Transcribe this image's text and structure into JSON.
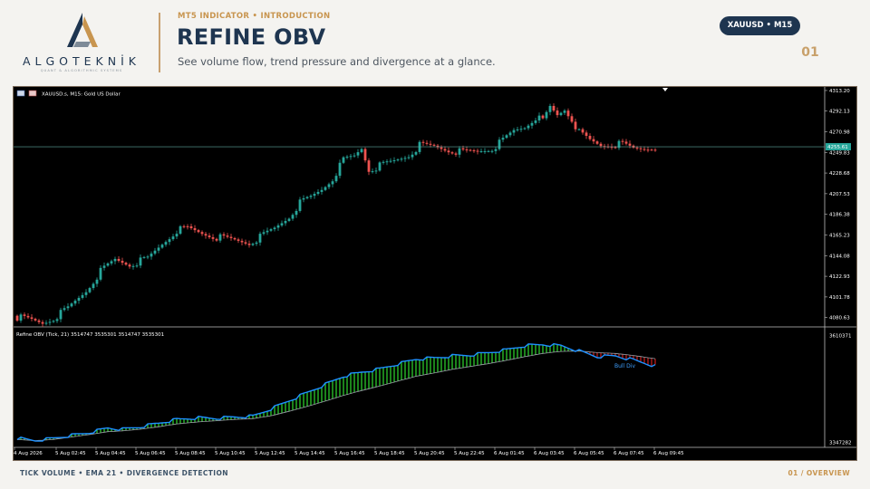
{
  "brand": {
    "name": "ALGOTEKNİK",
    "tagline": "QUANT & ALGORITHMIC SYSTEMS",
    "colors": {
      "navy": "#1e3550",
      "gold": "#c8954f"
    }
  },
  "header": {
    "eyebrow": "MT5 INDICATOR • INTRODUCTION",
    "title": "REFINE OBV",
    "subtitle": "See volume flow, trend pressure and divergence at a glance.",
    "badge": "XAUUSD • M15",
    "page_number": "01"
  },
  "footer": {
    "left": "TICK VOLUME • EMA 21 • DIVERGENCE DETECTION",
    "right": "01 / OVERVIEW"
  },
  "chart_data": [
    {
      "type": "candlestick",
      "title": "XAUUSD.s, M15:  Gold US Dollar",
      "y_ticks": [
        "4313.20",
        "4292.13",
        "4270.98",
        "4249.83",
        "4228.68",
        "4207.53",
        "4186.38",
        "4165.23",
        "4144.08",
        "4122.93",
        "4101.78",
        "4080.63"
      ],
      "ylim": [
        4072,
        4315
      ],
      "current_price": "4255.61",
      "current_price_value": 4255.6,
      "x_labels": [
        "4 Aug 2026",
        "5 Aug 02:45",
        "5 Aug 04:45",
        "5 Aug 06:45",
        "5 Aug 08:45",
        "5 Aug 10:45",
        "5 Aug 12:45",
        "5 Aug 14:45",
        "5 Aug 16:45",
        "5 Aug 18:45",
        "5 Aug 20:45",
        "5 Aug 22:45",
        "6 Aug 01:45",
        "6 Aug 03:45",
        "6 Aug 05:45",
        "6 Aug 07:45",
        "6 Aug 09:45"
      ],
      "close_anchors": [
        [
          0,
          4081
        ],
        [
          4,
          4078
        ],
        [
          7,
          4075
        ],
        [
          10,
          4080
        ],
        [
          14,
          4090
        ],
        [
          19,
          4108
        ],
        [
          23,
          4128
        ],
        [
          27,
          4140
        ],
        [
          31,
          4135
        ],
        [
          36,
          4141
        ],
        [
          40,
          4156
        ],
        [
          44,
          4170
        ],
        [
          47,
          4172
        ],
        [
          51,
          4167
        ],
        [
          55,
          4163
        ],
        [
          60,
          4160
        ],
        [
          64,
          4157
        ],
        [
          67,
          4163
        ],
        [
          71,
          4172
        ],
        [
          75,
          4184
        ],
        [
          78,
          4198
        ],
        [
          81,
          4204
        ],
        [
          84,
          4212
        ],
        [
          87,
          4223
        ],
        [
          90,
          4242
        ],
        [
          93,
          4246
        ],
        [
          95,
          4254
        ],
        [
          97,
          4232
        ],
        [
          100,
          4236
        ],
        [
          104,
          4241
        ],
        [
          108,
          4247
        ],
        [
          111,
          4257
        ],
        [
          115,
          4256
        ],
        [
          119,
          4252
        ],
        [
          123,
          4250
        ],
        [
          127,
          4251
        ],
        [
          131,
          4254
        ],
        [
          134,
          4262
        ],
        [
          137,
          4272
        ],
        [
          140,
          4276
        ],
        [
          143,
          4286
        ],
        [
          145,
          4282
        ],
        [
          147,
          4296
        ],
        [
          149,
          4288
        ],
        [
          151,
          4294
        ],
        [
          153,
          4284
        ],
        [
          155,
          4270
        ],
        [
          158,
          4262
        ],
        [
          161,
          4257
        ],
        [
          164,
          4258
        ],
        [
          167,
          4258
        ],
        [
          170,
          4254
        ],
        [
          173,
          4254
        ],
        [
          176,
          4256
        ]
      ],
      "colors": {
        "up": "#26a69a",
        "down": "#ef5350",
        "background": "#000000",
        "axis_text": "#ffffff"
      }
    },
    {
      "type": "area",
      "title": "Refine OBV (Tick, 21) 3514747 3535301 3514747 3535301",
      "y_ticks": [
        "3610371",
        "3347282"
      ],
      "ylim": [
        3340000,
        3620000
      ],
      "series": [
        {
          "role": "obv",
          "color": "#1e90ff"
        },
        {
          "role": "ema",
          "color": "#9aa0a8"
        }
      ],
      "fill_up_color": "#33ee33",
      "fill_down_color": "#dd2222",
      "annotation": "Bull Div",
      "obv_anchors": [
        [
          0,
          3358
        ],
        [
          5,
          3352
        ],
        [
          10,
          3358
        ],
        [
          15,
          3365
        ],
        [
          20,
          3372
        ],
        [
          25,
          3383
        ],
        [
          29,
          3380
        ],
        [
          34,
          3386
        ],
        [
          39,
          3395
        ],
        [
          44,
          3404
        ],
        [
          50,
          3408
        ],
        [
          55,
          3407
        ],
        [
          60,
          3410
        ],
        [
          65,
          3412
        ],
        [
          70,
          3430
        ],
        [
          75,
          3450
        ],
        [
          80,
          3470
        ],
        [
          85,
          3490
        ],
        [
          90,
          3510
        ],
        [
          95,
          3520
        ],
        [
          100,
          3528
        ],
        [
          105,
          3540
        ],
        [
          110,
          3552
        ],
        [
          115,
          3555
        ],
        [
          120,
          3560
        ],
        [
          125,
          3562
        ],
        [
          130,
          3568
        ],
        [
          135,
          3575
        ],
        [
          140,
          3585
        ],
        [
          145,
          3588
        ],
        [
          150,
          3585
        ],
        [
          155,
          3572
        ],
        [
          160,
          3558
        ],
        [
          165,
          3560
        ],
        [
          170,
          3550
        ],
        [
          176,
          3535
        ]
      ],
      "ema_anchors": [
        [
          0,
          3355
        ],
        [
          5,
          3352
        ],
        [
          10,
          3355
        ],
        [
          15,
          3361
        ],
        [
          20,
          3367
        ],
        [
          25,
          3374
        ],
        [
          29,
          3376
        ],
        [
          34,
          3380
        ],
        [
          39,
          3386
        ],
        [
          44,
          3393
        ],
        [
          50,
          3398
        ],
        [
          55,
          3401
        ],
        [
          60,
          3404
        ],
        [
          65,
          3406
        ],
        [
          70,
          3413
        ],
        [
          75,
          3424
        ],
        [
          80,
          3436
        ],
        [
          85,
          3449
        ],
        [
          90,
          3463
        ],
        [
          95,
          3475
        ],
        [
          100,
          3486
        ],
        [
          105,
          3498
        ],
        [
          110,
          3510
        ],
        [
          115,
          3518
        ],
        [
          120,
          3527
        ],
        [
          125,
          3534
        ],
        [
          130,
          3541
        ],
        [
          135,
          3549
        ],
        [
          140,
          3558
        ],
        [
          145,
          3566
        ],
        [
          150,
          3571
        ],
        [
          155,
          3572
        ],
        [
          160,
          3568
        ],
        [
          165,
          3566
        ],
        [
          170,
          3561
        ],
        [
          176,
          3553
        ]
      ]
    }
  ]
}
